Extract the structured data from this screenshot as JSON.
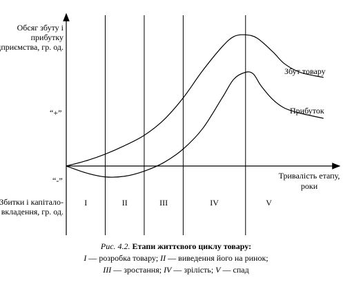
{
  "chart_data": {
    "type": "line",
    "ylabel": "Обсяг збуту і прибутку підприємства, гр. од.",
    "ylabel_negative": "Збитки і капітало- вкладення, гр. од.",
    "xlabel": "Тривалість етапу, роки",
    "y_markers": [
      "“+”",
      "“-”"
    ],
    "stages": [
      "I",
      "II",
      "III",
      "IV",
      "V"
    ],
    "stage_boundaries": [
      1,
      2,
      3,
      4.6
    ],
    "x_range": [
      0,
      6.8
    ],
    "y_range": [
      -0.35,
      4.1
    ],
    "series": [
      {
        "name": "Збут товару",
        "x": [
          0,
          0.5,
          1,
          1.5,
          2,
          2.5,
          3,
          3.5,
          4,
          4.3,
          4.6,
          4.9,
          5.3,
          5.6,
          6.0,
          6.6
        ],
        "y": [
          0,
          0.15,
          0.35,
          0.6,
          0.9,
          1.35,
          2.0,
          2.8,
          3.5,
          3.8,
          3.85,
          3.75,
          3.35,
          3.0,
          2.75,
          2.6
        ]
      },
      {
        "name": "Прибуток",
        "x": [
          0,
          0.5,
          1,
          1.5,
          2,
          2.5,
          3,
          3.5,
          4,
          4.3,
          4.6,
          4.8,
          5.0,
          5.3,
          5.6,
          6.0,
          6.6
        ],
        "y": [
          0,
          -0.2,
          -0.32,
          -0.3,
          -0.15,
          0.1,
          0.5,
          1.1,
          2.0,
          2.55,
          2.75,
          2.7,
          2.35,
          1.95,
          1.7,
          1.55,
          1.4
        ]
      }
    ],
    "grid": false,
    "legend": "inline labels"
  },
  "caption": {
    "number": "Рис. 4.2.",
    "title": "Етапи життєвого циклу товару:",
    "line2": [
      {
        "roman": "I",
        "text": " — розробка товару; "
      },
      {
        "roman": "II",
        "text": " — виведення його на ринок;"
      }
    ],
    "line3": [
      {
        "roman": "III",
        "text": " — зростання; "
      },
      {
        "roman": "IV",
        "text": " — зрілість; "
      },
      {
        "roman": "V",
        "text": " — спад"
      }
    ]
  }
}
